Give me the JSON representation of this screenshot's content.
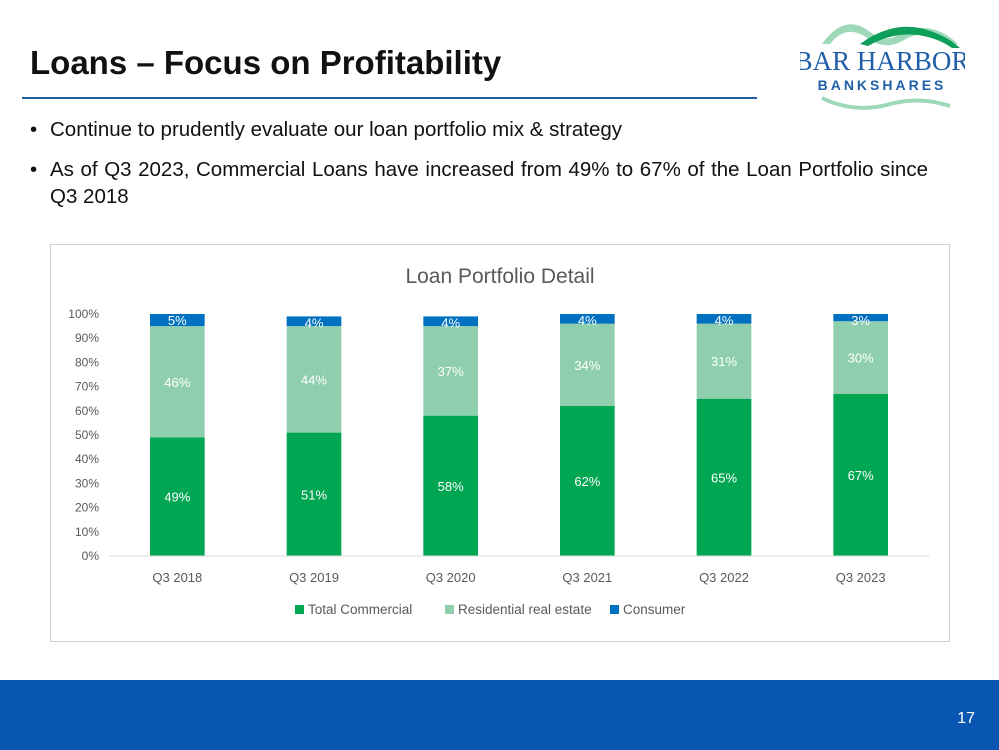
{
  "slide": {
    "title": "Loans – Focus on Profitability",
    "page_number": "17"
  },
  "logo": {
    "line1": "BAR HARBOR",
    "line2": "BANKSHARES",
    "colors": {
      "text": "#1f5fa8",
      "arc_green": "#0e9f5a",
      "arc_light": "#9dd9b8",
      "arc_blue": "#1f5fa8"
    }
  },
  "bullets": [
    "Continue to prudently evaluate our loan portfolio mix & strategy",
    "As of Q3 2023, Commercial Loans have increased from 49% to 67% of the Loan Portfolio since Q3 2018"
  ],
  "chart_data": {
    "type": "bar",
    "stacked": true,
    "title": "Loan Portfolio Detail",
    "categories": [
      "Q3 2018",
      "Q3 2019",
      "Q3 2020",
      "Q3 2021",
      "Q3 2022",
      "Q3 2023"
    ],
    "series": [
      {
        "name": "Total Commercial",
        "values": [
          49,
          51,
          58,
          62,
          65,
          67
        ],
        "labels": [
          "49%",
          "51%",
          "58%",
          "62%",
          "65%",
          "67%"
        ],
        "color": "#00a651"
      },
      {
        "name": "Residential real estate",
        "values": [
          46,
          44,
          37,
          34,
          31,
          30
        ],
        "labels": [
          "46%",
          "44%",
          "37%",
          "34%",
          "31%",
          "30%"
        ],
        "color": "#8fcfae"
      },
      {
        "name": "Consumer",
        "values": [
          5,
          4,
          4,
          4,
          4,
          3
        ],
        "labels": [
          "5%",
          "4%",
          "4%",
          "4%",
          "4%",
          "3%"
        ],
        "color": "#0070c0"
      }
    ],
    "y_ticks": [
      "0%",
      "10%",
      "20%",
      "30%",
      "40%",
      "50%",
      "60%",
      "70%",
      "80%",
      "90%",
      "100%"
    ],
    "ylim": [
      0,
      100
    ],
    "grid": false,
    "legend_position": "bottom"
  },
  "colors": {
    "footer": "#0a56b3",
    "rule": "#1f5fa8"
  }
}
